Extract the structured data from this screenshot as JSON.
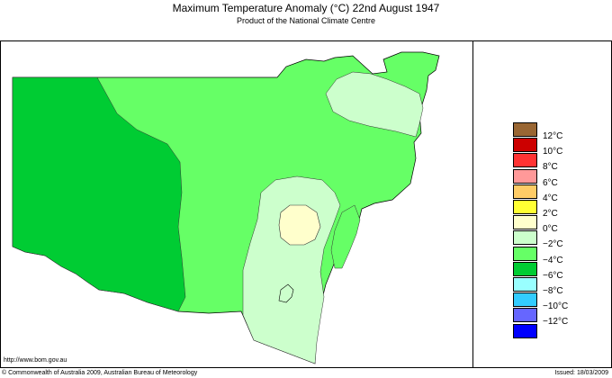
{
  "title": "Maximum Temperature Anomaly (°C)  22nd August 1947",
  "subtitle": "Product of the National Climate Centre",
  "legend": [
    {
      "label": "12°C",
      "color": "#996633"
    },
    {
      "label": "10°C",
      "color": "#cc0000"
    },
    {
      "label": "8°C",
      "color": "#ff3333"
    },
    {
      "label": "6°C",
      "color": "#ff9999"
    },
    {
      "label": "4°C",
      "color": "#ffcc66"
    },
    {
      "label": "2°C",
      "color": "#ffff33"
    },
    {
      "label": "0°C",
      "color": "#ffffcc"
    },
    {
      "label": "−2°C",
      "color": "#ccffcc"
    },
    {
      "label": "−4°C",
      "color": "#66ff66"
    },
    {
      "label": "−6°C",
      "color": "#00cc33"
    },
    {
      "label": "−8°C",
      "color": "#99ffff"
    },
    {
      "label": "−10°C",
      "color": "#33ccff"
    },
    {
      "label": "−12°C",
      "color": "#6666ff"
    },
    {
      "label": "",
      "color": "#0000ff"
    }
  ],
  "footer": {
    "url": "http://www.bom.gov.au",
    "copyright": "© Commonwealth of Australia 2009, Australian Bureau of Meteorology",
    "issued": "Issued: 18/03/2009"
  }
}
